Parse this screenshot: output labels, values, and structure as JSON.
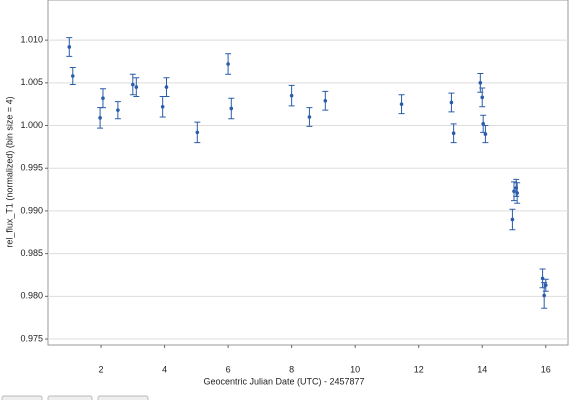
{
  "chart_data": {
    "type": "scatter",
    "xlabel": "Geocentric Julian Date (UTC) - 2457877",
    "ylabel": "rel_flux_T1 (normalized) (bin size = 4)",
    "x": [
      1.0,
      1.11,
      1.97,
      2.06,
      2.53,
      3.0,
      3.11,
      3.94,
      4.06,
      5.03,
      6.0,
      6.1,
      8.0,
      8.56,
      9.06,
      11.46,
      13.03,
      13.1,
      13.94,
      14.0,
      14.03,
      14.1,
      14.95,
      15.0,
      15.07,
      15.1,
      15.9,
      15.95,
      16.0
    ],
    "y": [
      1.0092,
      1.0058,
      1.0009,
      1.0032,
      1.0018,
      1.0048,
      1.0045,
      1.0022,
      1.0045,
      0.9992,
      1.0072,
      1.002,
      1.0035,
      1.001,
      1.0029,
      1.0025,
      1.0027,
      0.9991,
      1.005,
      1.0033,
      1.0002,
      0.999,
      0.989,
      0.9923,
      0.9927,
      0.9921,
      0.9821,
      0.9801,
      0.9813
    ],
    "errors": [
      0.0011,
      0.001,
      0.0012,
      0.0011,
      0.001,
      0.0012,
      0.0011,
      0.0012,
      0.0011,
      0.0012,
      0.0012,
      0.0012,
      0.0012,
      0.0011,
      0.0011,
      0.0011,
      0.0011,
      0.0011,
      0.0011,
      0.0011,
      0.001,
      0.001,
      0.0012,
      0.0011,
      0.001,
      0.0012,
      0.0011,
      0.0015,
      0.0007
    ],
    "color": "#2a5caa",
    "xlim": [
      0.33,
      16.7
    ],
    "xticks": [
      2,
      4,
      6,
      8,
      10,
      12,
      14,
      16
    ],
    "ylim": [
      0.9743,
      1.0147
    ],
    "yticks": [
      {
        "value": 0.975,
        "label": "0.975"
      },
      {
        "value": 0.98,
        "label": "0.980"
      },
      {
        "value": 0.985,
        "label": "0.985"
      },
      {
        "value": 0.99,
        "label": "0.990"
      },
      {
        "value": 0.995,
        "label": "0.995"
      },
      {
        "value": 1.0,
        "label": "1.000"
      },
      {
        "value": 1.005,
        "label": "1.005"
      },
      {
        "value": 1.01,
        "label": "1.010"
      }
    ],
    "grid": true
  }
}
